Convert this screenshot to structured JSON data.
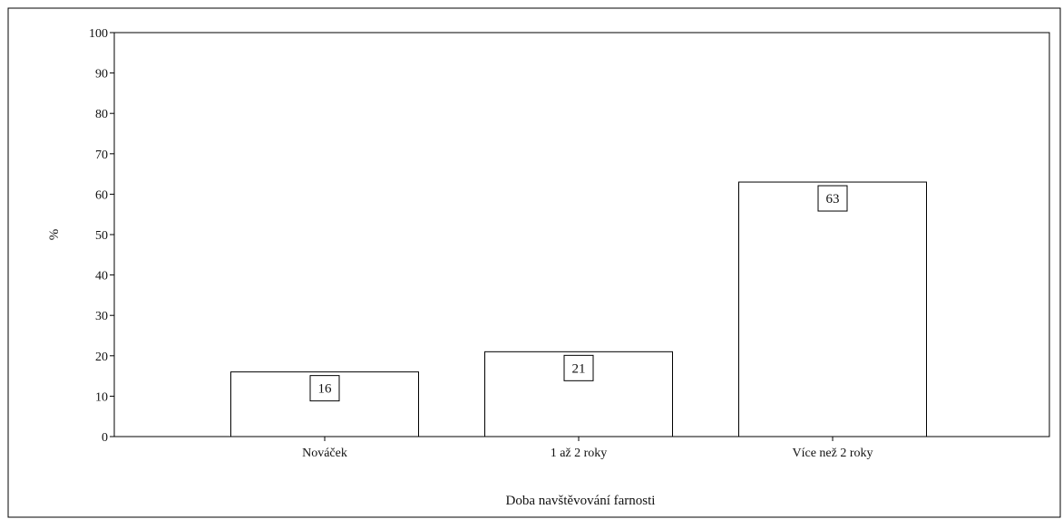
{
  "chart_data": {
    "type": "bar",
    "categories": [
      "Nováček",
      "1 až 2 roky",
      "Více než 2 roky"
    ],
    "values": [
      16,
      21,
      63
    ],
    "data_labels": [
      "16",
      "21",
      "63"
    ],
    "xlabel": "Doba navštěvování farnosti",
    "ylabel": "%",
    "ylim": [
      0,
      100
    ],
    "yticks": [
      "0",
      "10",
      "20",
      "30",
      "40",
      "50",
      "60",
      "70",
      "80",
      "90",
      "100"
    ],
    "grid": false,
    "legend": "none",
    "colors": {
      "bar_fill": "#ffffff",
      "bar_stroke": "#000000",
      "axis": "#000000"
    }
  }
}
